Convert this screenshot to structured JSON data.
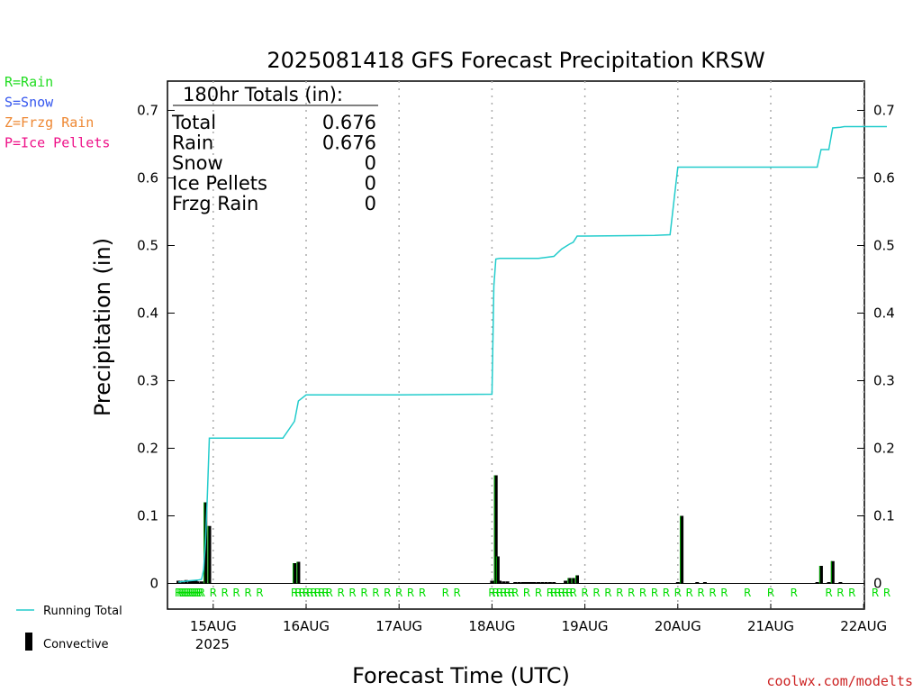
{
  "chart_data": {
    "type": "bar",
    "title": "2025081418 GFS Forecast Precipitation KRSW",
    "xlabel": "Forecast Time (UTC)",
    "ylabel": "Precipitation (in)",
    "ylim": [
      0,
      0.74
    ],
    "xlim_hours": [
      -4,
      180
    ],
    "y_ticks": [
      "0",
      "0.1",
      "0.2",
      "0.3",
      "0.4",
      "0.5",
      "0.6",
      "0.7"
    ],
    "x_ticks": [
      {
        "hour": 6,
        "label": "15AUG",
        "sub": "2025"
      },
      {
        "hour": 30,
        "label": "16AUG",
        "sub": ""
      },
      {
        "hour": 54,
        "label": "17AUG",
        "sub": ""
      },
      {
        "hour": 78,
        "label": "18AUG",
        "sub": ""
      },
      {
        "hour": 102,
        "label": "19AUG",
        "sub": ""
      },
      {
        "hour": 126,
        "label": "20AUG",
        "sub": ""
      },
      {
        "hour": 150,
        "label": "21AUG",
        "sub": ""
      },
      {
        "hour": 174,
        "label": "22AUG",
        "sub": ""
      }
    ],
    "grid": "vertical dotted at each day",
    "precip_type_legend": [
      {
        "text": "R=Rain",
        "color": "#22dd22"
      },
      {
        "text": "S=Snow",
        "color": "#3355ee"
      },
      {
        "text": "Z=Frzg Rain",
        "color": "#ee8833"
      },
      {
        "text": "P=Ice Pellets",
        "color": "#ee1188"
      }
    ],
    "series_legend": [
      {
        "name": "Running Total",
        "color": "#22cccc"
      },
      {
        "name": "Convective",
        "color": "#000000"
      }
    ],
    "totals": {
      "heading": "180hr Totals (in):",
      "rows": [
        {
          "label": "Total",
          "value": "0.676"
        },
        {
          "label": "Rain",
          "value": "0.676"
        },
        {
          "label": "Snow",
          "value": "0"
        },
        {
          "label": "Ice Pellets",
          "value": "0"
        },
        {
          "label": "Frzg Rain",
          "value": "0"
        }
      ]
    },
    "running_total": {
      "x": [
        -3,
        0,
        2,
        3,
        3.5,
        4,
        4.5,
        5,
        6,
        24,
        27,
        28,
        30,
        54,
        78,
        78.5,
        79,
        80,
        82,
        84,
        90,
        94,
        96,
        98,
        99,
        100,
        102,
        120,
        124,
        126,
        138,
        162,
        163,
        165,
        166,
        168,
        169,
        170,
        180
      ],
      "y": [
        0.002,
        0.004,
        0.005,
        0.006,
        0.02,
        0.06,
        0.13,
        0.215,
        0.215,
        0.215,
        0.24,
        0.27,
        0.279,
        0.279,
        0.28,
        0.44,
        0.48,
        0.481,
        0.481,
        0.481,
        0.481,
        0.484,
        0.495,
        0.502,
        0.505,
        0.514,
        0.514,
        0.515,
        0.516,
        0.616,
        0.616,
        0.616,
        0.642,
        0.642,
        0.674,
        0.675,
        0.676,
        0.676,
        0.676
      ]
    },
    "precip_bars": {
      "x": [
        -3,
        -2,
        -1,
        0,
        0.5,
        1,
        1.5,
        2,
        3,
        4,
        5,
        27,
        28,
        78,
        78.5,
        79,
        79.5,
        80,
        81,
        82,
        84,
        85,
        86,
        86.5,
        87,
        87.5,
        88,
        88.5,
        89,
        90,
        91,
        92,
        93,
        94,
        97,
        98,
        99,
        100,
        126,
        127,
        131,
        133,
        162,
        163,
        165,
        166,
        168
      ],
      "values": [
        0.004,
        0.004,
        0.005,
        0.004,
        0.004,
        0.005,
        0.004,
        0.003,
        0.003,
        0.12,
        0.085,
        0.03,
        0.032,
        0.004,
        0.004,
        0.16,
        0.04,
        0.004,
        0.003,
        0.003,
        0.002,
        0.002,
        0.002,
        0.002,
        0.002,
        0.002,
        0.002,
        0.002,
        0.002,
        0.002,
        0.002,
        0.002,
        0.002,
        0.002,
        0.004,
        0.008,
        0.008,
        0.012,
        0.002,
        0.1,
        0.002,
        0.002,
        0.002,
        0.026,
        0.002,
        0.033,
        0.002
      ]
    },
    "type_markers": {
      "label": "R",
      "hours": [
        -3,
        -2.5,
        -2,
        -1.5,
        -1,
        -0.5,
        0,
        0.5,
        1,
        1.5,
        2,
        2.5,
        3,
        6,
        9,
        12,
        15,
        18,
        27,
        28,
        29,
        30,
        31,
        32,
        33,
        34,
        35,
        36,
        39,
        42,
        45,
        48,
        51,
        54,
        57,
        60,
        66,
        69,
        78,
        79,
        80,
        81,
        82,
        83,
        84,
        87,
        90,
        93,
        94,
        95,
        96,
        97,
        98,
        99,
        102,
        105,
        108,
        111,
        114,
        117,
        120,
        123,
        126,
        129,
        132,
        135,
        138,
        144,
        150,
        156,
        165,
        168,
        171,
        177,
        180
      ]
    }
  },
  "credit": "coolwx.com/modelts"
}
